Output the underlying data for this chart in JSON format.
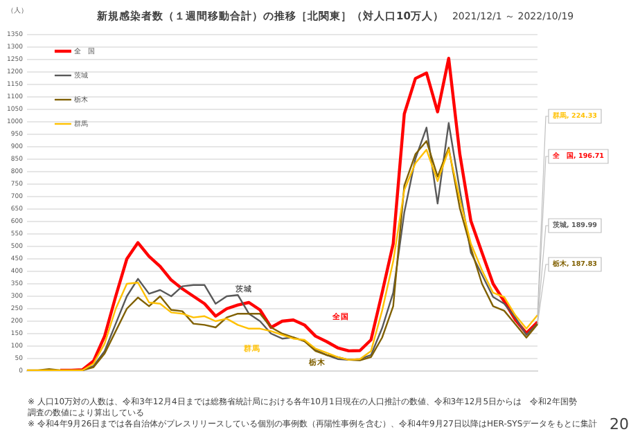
{
  "chart_data": {
    "type": "line",
    "title": "新規感染者数（１週間移動合計）の推移［北関東］（対人口10万人）",
    "subtitle": "2021/12/1 ～ 2022/10/19",
    "ylabel": "（人）",
    "categories": [
      null,
      null,
      null,
      null,
      null,
      null,
      null,
      null,
      null,
      null,
      null,
      null,
      null,
      null,
      null,
      null,
      null,
      null,
      null,
      null,
      null,
      null,
      null,
      null,
      null,
      null,
      null,
      null,
      null,
      null,
      null,
      null,
      null,
      null,
      null,
      null,
      null,
      null,
      null,
      null,
      null,
      null,
      null,
      null,
      null,
      null,
      null
    ],
    "series": [
      {
        "name": "全　国",
        "color": "#ff0000",
        "values": [
          null,
          null,
          null,
          3,
          3,
          5,
          40,
          140,
          300,
          450,
          515,
          460,
          420,
          365,
          330,
          300,
          270,
          220,
          250,
          265,
          275,
          245,
          175,
          200,
          205,
          185,
          140,
          118,
          93,
          81,
          82,
          125,
          314,
          511,
          1032,
          1174,
          1196,
          1040,
          1255,
          871,
          602,
          475,
          350,
          280,
          206,
          152,
          196.71
        ],
        "value_labels": [
          null,
          null,
          null,
          null,
          null,
          null,
          null,
          null,
          null,
          null,
          null,
          null,
          null,
          null,
          null,
          null,
          null,
          null,
          null,
          null,
          null,
          null,
          null,
          null,
          null,
          null,
          null,
          null,
          null,
          null,
          null,
          null,
          null,
          null,
          null,
          null,
          null,
          null,
          null,
          null,
          null,
          null,
          null,
          null,
          null,
          null,
          "全　国, 196.71"
        ]
      },
      {
        "name": "茨城",
        "color": "#595959",
        "values": [
          null,
          null,
          null,
          null,
          null,
          3,
          20,
          80,
          190,
          300,
          370,
          310,
          325,
          300,
          340,
          345,
          345,
          270,
          300,
          305,
          230,
          200,
          150,
          130,
          135,
          120,
          85,
          64,
          48,
          45,
          48,
          64,
          172,
          314,
          637,
          852,
          977,
          672,
          995,
          726,
          475,
          386,
          297,
          270,
          215,
          145,
          189.99
        ],
        "value_labels": [
          null,
          null,
          null,
          null,
          null,
          null,
          null,
          null,
          null,
          null,
          null,
          null,
          null,
          null,
          null,
          null,
          null,
          null,
          null,
          null,
          null,
          null,
          null,
          null,
          null,
          null,
          null,
          null,
          null,
          null,
          null,
          null,
          null,
          null,
          null,
          null,
          null,
          null,
          null,
          null,
          null,
          null,
          null,
          null,
          null,
          null,
          "茨城, 189.99"
        ]
      },
      {
        "name": "栃木",
        "color": "#806000",
        "values": [
          3,
          3,
          8,
          3,
          3,
          3,
          15,
          70,
          160,
          250,
          295,
          260,
          300,
          245,
          240,
          190,
          185,
          175,
          215,
          230,
          230,
          230,
          175,
          150,
          135,
          120,
          80,
          64,
          56,
          45,
          43,
          56,
          134,
          260,
          744,
          870,
          923,
          780,
          896,
          654,
          493,
          350,
          260,
          242,
          188,
          134,
          187.83
        ],
        "value_labels": [
          null,
          null,
          null,
          null,
          null,
          null,
          null,
          null,
          null,
          null,
          null,
          null,
          null,
          null,
          null,
          null,
          null,
          null,
          null,
          null,
          null,
          null,
          null,
          null,
          null,
          null,
          null,
          null,
          null,
          null,
          null,
          null,
          null,
          null,
          null,
          null,
          null,
          null,
          null,
          null,
          null,
          null,
          null,
          null,
          null,
          null,
          "栃木, 187.83"
        ]
      },
      {
        "name": "群馬",
        "color": "#ffc000",
        "values": [
          3,
          3,
          3,
          3,
          3,
          3,
          30,
          110,
          250,
          350,
          355,
          275,
          270,
          235,
          230,
          215,
          220,
          200,
          210,
          185,
          170,
          170,
          160,
          145,
          130,
          125,
          90,
          73,
          56,
          45,
          48,
          80,
          242,
          440,
          726,
          834,
          888,
          762,
          888,
          690,
          511,
          404,
          314,
          297,
          224,
          170,
          224.33
        ],
        "value_labels": [
          null,
          null,
          null,
          null,
          null,
          null,
          null,
          null,
          null,
          null,
          null,
          null,
          null,
          null,
          null,
          null,
          null,
          null,
          null,
          null,
          null,
          null,
          null,
          null,
          null,
          null,
          null,
          null,
          null,
          null,
          null,
          null,
          null,
          null,
          null,
          null,
          null,
          null,
          null,
          null,
          null,
          null,
          null,
          null,
          null,
          null,
          "群馬, 224.33"
        ]
      }
    ],
    "ylim": [
      0,
      1350
    ],
    "yticks": [
      0,
      50,
      100,
      150,
      200,
      250,
      300,
      350,
      400,
      450,
      500,
      550,
      600,
      650,
      700,
      750,
      800,
      850,
      900,
      950,
      1000,
      1050,
      1100,
      1150,
      1200,
      1250,
      1300,
      1350
    ],
    "grid": "y",
    "legend": "top left",
    "marker": "none",
    "annotations": [
      "全国",
      "茨城",
      "群馬",
      "栃木",
      "※ 人口10万対の人数は、令和3年12月4日までは総務省統計局における各年10月1日現在の人口推計の数値、令和3年12月5日からは　令和2年国勢調査の数値により算出している",
      "※ 令和4年9月26日までは各自治体がプレスリリースしている個別の事例数（再陽性事例を含む）、令和4年9月27日以降はHER-SYSデータをもとに集計",
      "20"
    ]
  }
}
